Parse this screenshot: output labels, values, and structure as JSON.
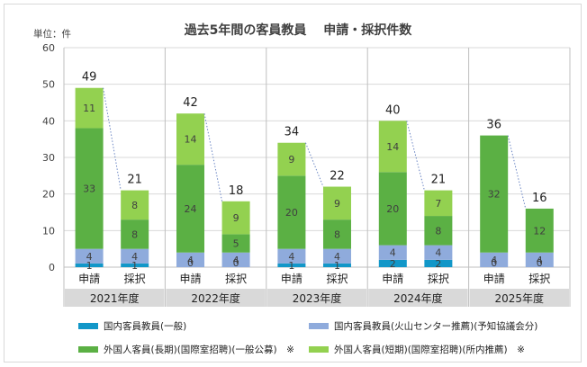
{
  "colors": {
    "domestic_general": "#1297c8",
    "domestic_recommended": "#8fabdc",
    "foreign_long": "#5bb044",
    "foreign_short": "#93d150"
  },
  "chart_data": {
    "type": "bar",
    "stacked": true,
    "title": "過去5年間の客員教員　 申請・採択件数",
    "unit_label": "単位：件",
    "ylim": [
      0,
      60
    ],
    "yticks": [
      "0",
      "10",
      "20",
      "30",
      "40",
      "50",
      "60"
    ],
    "grid": true,
    "legend_position": "bottom",
    "groups": [
      {
        "year": "2021年度",
        "categories": [
          "申請",
          "採択"
        ],
        "totals": [
          49,
          21
        ]
      },
      {
        "year": "2022年度",
        "categories": [
          "申請",
          "採択"
        ],
        "totals": [
          42,
          18
        ]
      },
      {
        "year": "2023年度",
        "categories": [
          "申請",
          "採択"
        ],
        "totals": [
          34,
          22
        ]
      },
      {
        "year": "2024年度",
        "categories": [
          "申請",
          "採択"
        ],
        "totals": [
          40,
          21
        ]
      },
      {
        "year": "2025年度",
        "categories": [
          "申請",
          "採択"
        ],
        "totals": [
          36,
          16
        ]
      }
    ],
    "series": [
      {
        "name": "国内客員教員(一般)",
        "color_key": "domestic_general",
        "values": [
          1,
          1,
          0,
          0,
          1,
          1,
          2,
          2,
          0,
          0
        ]
      },
      {
        "name": "国内客員教員(火山センター推薦)(予知協議会分)",
        "color_key": "domestic_recommended",
        "values": [
          4,
          4,
          4,
          4,
          4,
          4,
          4,
          4,
          4,
          4
        ]
      },
      {
        "name": "外国人客員(長期)(国際室招聘)(一般公募)　※",
        "color_key": "foreign_long",
        "values": [
          33,
          8,
          24,
          5,
          20,
          8,
          20,
          8,
          32,
          12
        ]
      },
      {
        "name": "外国人客員(短期)(国際室招聘)(所内推薦)　※",
        "color_key": "foreign_short",
        "values": [
          11,
          8,
          14,
          9,
          9,
          9,
          14,
          7,
          0,
          0
        ]
      }
    ]
  }
}
